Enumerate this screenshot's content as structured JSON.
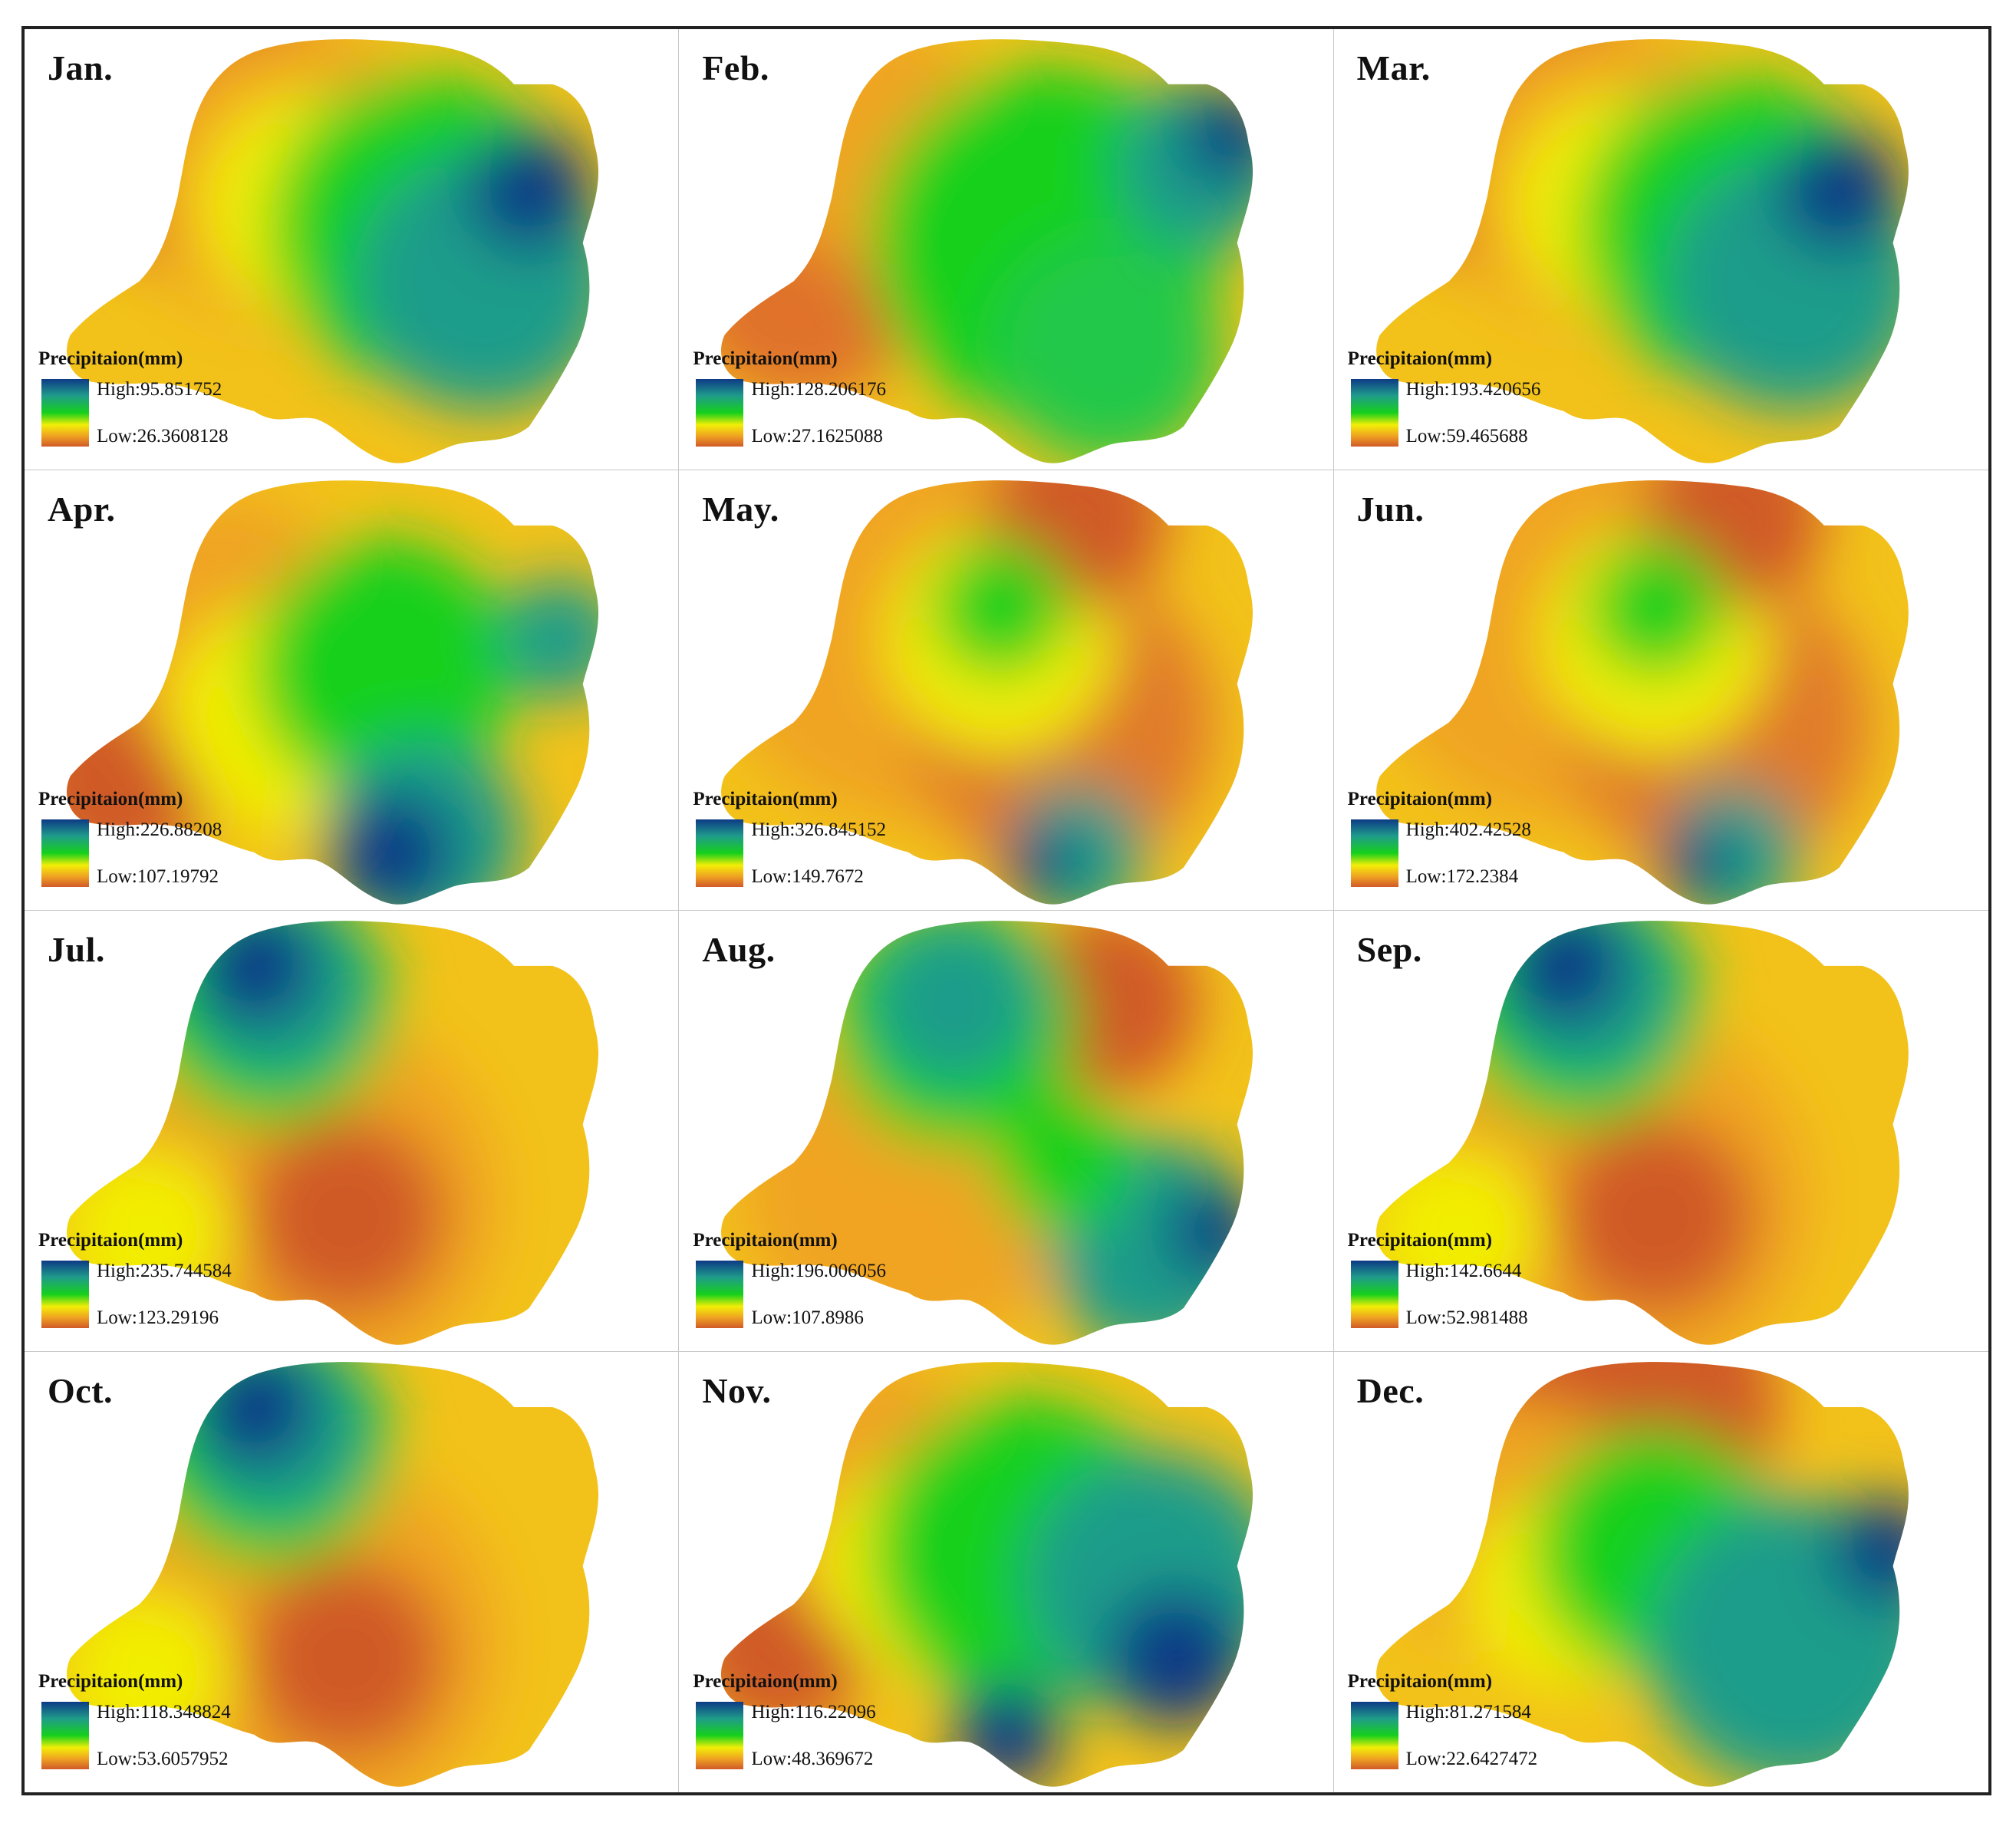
{
  "legend_title": "Precipitaion(mm)",
  "color_ramp": [
    "#0d3a86",
    "#1f9c8a",
    "#16d01c",
    "#f2ee06",
    "#f0a422",
    "#d05a28"
  ],
  "panels": [
    {
      "month": "Jan.",
      "high": "High:95.851752",
      "low": "Low:26.3608128",
      "pattern": "nw-dry-east-wet"
    },
    {
      "month": "Feb.",
      "high": "High:128.206176",
      "low": "Low:27.1625088",
      "pattern": "west-dry-center-green"
    },
    {
      "month": "Mar.",
      "high": "High:193.420656",
      "low": "Low:59.465688",
      "pattern": "nw-dry-east-wet"
    },
    {
      "month": "Apr.",
      "high": "High:226.88208",
      "low": "Low:107.19792",
      "pattern": "west-dry-south-wet"
    },
    {
      "month": "May.",
      "high": "High:326.845152",
      "low": "Low:149.7672",
      "pattern": "mostly-dry-south-wet"
    },
    {
      "month": "Jun.",
      "high": "High:402.42528",
      "low": "Low:172.2384",
      "pattern": "mostly-dry-south-wet"
    },
    {
      "month": "Jul.",
      "high": "High:235.744584",
      "low": "Low:123.29196",
      "pattern": "north-wet-south-dry"
    },
    {
      "month": "Aug.",
      "high": "High:196.006056",
      "low": "Low:107.8986",
      "pattern": "north-wet-southeast-wet"
    },
    {
      "month": "Sep.",
      "high": "High:142.6644",
      "low": "Low:52.981488",
      "pattern": "north-wet-south-dry"
    },
    {
      "month": "Oct.",
      "high": "High:118.348824",
      "low": "Low:53.6057952",
      "pattern": "north-wet-south-dry"
    },
    {
      "month": "Nov.",
      "high": "High:116.22096",
      "low": "Low:48.369672",
      "pattern": "west-dry-east-wet"
    },
    {
      "month": "Dec.",
      "high": "High:81.271584",
      "low": "Low:22.6427472",
      "pattern": "north-dry-east-wet"
    }
  ]
}
